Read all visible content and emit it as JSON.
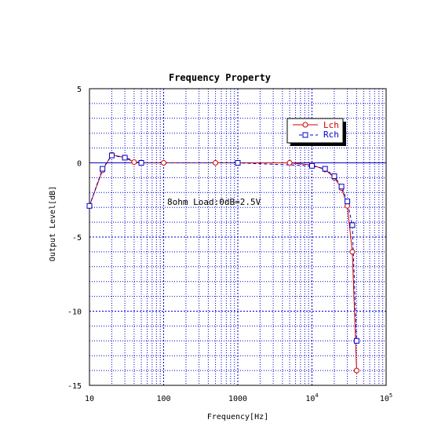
{
  "chart_data": {
    "type": "line",
    "title": "Frequency Property",
    "xlabel": "Frequency[Hz]",
    "ylabel": "Output Level[dB]",
    "xscale": "log",
    "xlim": [
      10,
      100000
    ],
    "ylim": [
      -15,
      5
    ],
    "grid": true,
    "x_tick_labels": [
      {
        "value": 10,
        "label": "10"
      },
      {
        "value": 100,
        "label": "100"
      },
      {
        "value": 1000,
        "label": "1000"
      },
      {
        "value": 10000,
        "label": "10",
        "sup": "4"
      },
      {
        "value": 100000,
        "label": "10",
        "sup": "5"
      }
    ],
    "y_tick_labels": [
      {
        "value": 5,
        "label": "5"
      },
      {
        "value": 0,
        "label": "0"
      },
      {
        "value": -5,
        "label": "-5"
      },
      {
        "value": -10,
        "label": "-10"
      },
      {
        "value": -15,
        "label": "-15"
      }
    ],
    "annotation": "8ohm Load:0dB=2.5V",
    "legend_position": "top-right",
    "series": [
      {
        "name": "Lch",
        "color": "#cc0000",
        "marker": "circle",
        "points": [
          [
            10,
            -2.9
          ],
          [
            15,
            -0.5
          ],
          [
            20,
            0.55
          ],
          [
            30,
            0.35
          ],
          [
            40,
            0.05
          ],
          [
            50,
            0.0
          ],
          [
            100,
            0.0
          ],
          [
            500,
            0.0
          ],
          [
            1000,
            0.0
          ],
          [
            5000,
            0.0
          ],
          [
            10000,
            -0.15
          ],
          [
            15000,
            -0.45
          ],
          [
            20000,
            -1.0
          ],
          [
            25000,
            -1.7
          ],
          [
            30000,
            -2.9
          ],
          [
            35000,
            -6.0
          ],
          [
            40000,
            -14.0
          ]
        ]
      },
      {
        "name": "Rch",
        "color": "#0000cc",
        "marker": "square",
        "points": [
          [
            10,
            -2.9
          ],
          [
            15,
            -0.4
          ],
          [
            20,
            0.5
          ],
          [
            30,
            0.35
          ],
          [
            50,
            0.0
          ],
          [
            1000,
            0.0
          ],
          [
            10000,
            -0.2
          ],
          [
            15000,
            -0.4
          ],
          [
            20000,
            -0.9
          ],
          [
            25000,
            -1.6
          ],
          [
            30000,
            -2.6
          ],
          [
            35000,
            -4.2
          ],
          [
            40000,
            -12.0
          ]
        ]
      }
    ]
  }
}
